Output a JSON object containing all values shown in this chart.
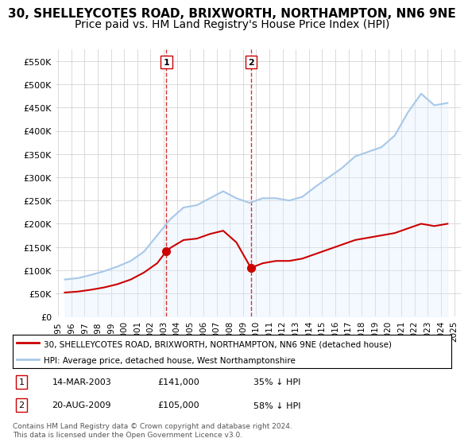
{
  "title": "30, SHELLEYCOTES ROAD, BRIXWORTH, NORTHAMPTON, NN6 9NE",
  "subtitle": "Price paid vs. HM Land Registry's House Price Index (HPI)",
  "legend_line1": "30, SHELLEYCOTES ROAD, BRIXWORTH, NORTHAMPTON, NN6 9NE (detached house)",
  "legend_line2": "HPI: Average price, detached house, West Northamptonshire",
  "footnote": "Contains HM Land Registry data © Crown copyright and database right 2024.\nThis data is licensed under the Open Government Licence v3.0.",
  "table_rows": [
    {
      "num": "1",
      "date": "14-MAR-2003",
      "price": "£141,000",
      "pct": "35% ↓ HPI"
    },
    {
      "num": "2",
      "date": "20-AUG-2009",
      "price": "£105,000",
      "pct": "58% ↓ HPI"
    }
  ],
  "marker1_year": 2003.2,
  "marker1_value": 141000,
  "marker2_year": 2009.6,
  "marker2_value": 105000,
  "red_line_color": "#cc0000",
  "blue_line_color": "#a8c8e8",
  "blue_fill_color": "#ddeeff",
  "vline_color": "#cc0000",
  "background_color": "#ffffff",
  "grid_color": "#cccccc",
  "ylim": [
    0,
    575000
  ],
  "yticks": [
    0,
    50000,
    100000,
    150000,
    200000,
    250000,
    300000,
    350000,
    400000,
    450000,
    500000,
    550000
  ],
  "title_fontsize": 11,
  "subtitle_fontsize": 10
}
